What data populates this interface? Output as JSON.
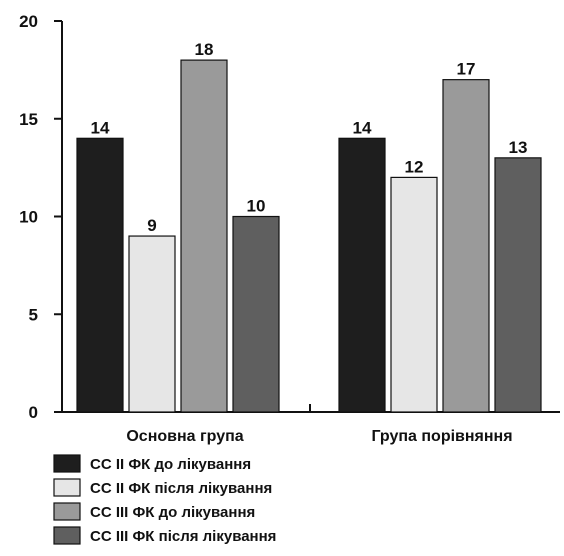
{
  "chart_data": {
    "type": "bar",
    "categories": [
      "Основна група",
      "Група порівняння"
    ],
    "series": [
      {
        "name": "СС II ФК до лікування",
        "values": [
          14,
          14
        ],
        "color": "#1e1e1e"
      },
      {
        "name": "СС II ФК після лікування",
        "values": [
          9,
          12
        ],
        "color": "#e6e6e6"
      },
      {
        "name": "СС III ФК до лікування",
        "values": [
          18,
          17
        ],
        "color": "#9a9a9a"
      },
      {
        "name": "СС III ФК після лікування",
        "values": [
          10,
          13
        ],
        "color": "#5f5f5f"
      }
    ],
    "yticks": [
      0,
      5,
      10,
      15,
      20
    ],
    "ylim": [
      0,
      20
    ],
    "title": "",
    "xlabel": "",
    "ylabel": "",
    "grid": false,
    "legend_position": "bottom-left"
  }
}
